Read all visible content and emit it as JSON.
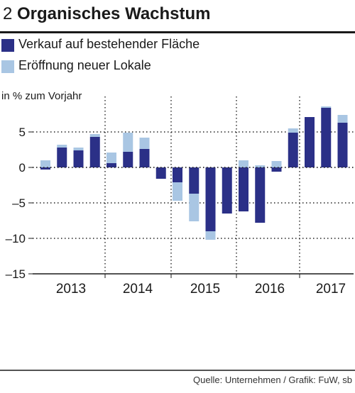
{
  "figure": {
    "number": "2",
    "title": "Organisches Wachstum",
    "source": "Quelle: Unternehmen / Grafik: FuW, sb"
  },
  "colors": {
    "dark_series": "#2b3087",
    "light_series": "#a9c6e3",
    "grid": "#222222",
    "axis": "#1a1a1a"
  },
  "chart_data": {
    "type": "bar",
    "stacked": true,
    "title": "Organisches Wachstum",
    "ylabel": "in % zum Vorjahr",
    "xlabel": "",
    "ylim": [
      -15,
      10
    ],
    "yticks": [
      5,
      0,
      -5,
      -10,
      -15
    ],
    "ytick_labels": [
      "5",
      "0",
      "–5",
      "–10",
      "–15"
    ],
    "grid": "dotted",
    "legend_position": "top-left",
    "years": [
      "2013",
      "2014",
      "2015",
      "2016",
      "2017"
    ],
    "categories": [
      "2013 Q1",
      "2013 Q2",
      "2013 Q3",
      "2013 Q4",
      "2014 Q1",
      "2014 Q2",
      "2014 Q3",
      "2014 Q4",
      "2015 Q1",
      "2015 Q2",
      "2015 Q3",
      "2015 Q4",
      "2016 Q1",
      "2016 Q2",
      "2016 Q3",
      "2016 Q4",
      "2017 Q1",
      "2017 Q2",
      "2017 Q3"
    ],
    "series": [
      {
        "name": "Verkauf auf bestehender Fläche",
        "color": "#2b3087",
        "values": [
          -0.3,
          2.8,
          2.4,
          4.3,
          0.6,
          2.2,
          2.6,
          -1.6,
          -2.1,
          -3.7,
          -9.0,
          -6.5,
          -6.2,
          -7.8,
          -0.6,
          4.9,
          7.1,
          8.4,
          6.3
        ]
      },
      {
        "name": "Eröffnung neuer Lokale",
        "color": "#a9c6e3",
        "values": [
          1.0,
          0.4,
          0.4,
          0.4,
          1.5,
          2.7,
          1.6,
          0.0,
          -2.6,
          -3.9,
          -1.2,
          0.0,
          1.0,
          0.3,
          0.9,
          0.6,
          0.0,
          0.2,
          1.1
        ]
      }
    ]
  }
}
